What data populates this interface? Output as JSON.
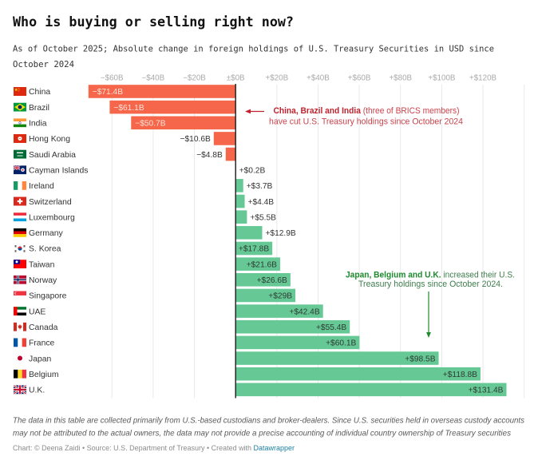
{
  "title": "Who is buying or selling right now?",
  "subtitle_lines": [
    "As of October 2025; Absolute change in foreign holdings of U.S. Treasury Securities in USD since",
    "October 2024"
  ],
  "chart_data": {
    "type": "bar",
    "orientation": "horizontal",
    "title": "Who is buying or selling right now?",
    "xlabel": "Absolute change in foreign holdings of U.S. Treasury Securities (USD billions)",
    "ylabel": "",
    "unit": "USD billions",
    "categories": [
      "China",
      "Brazil",
      "India",
      "Hong Kong",
      "Saudi Arabia",
      "Cayman Islands",
      "Ireland",
      "Switzerland",
      "Luxembourg",
      "Germany",
      "S. Korea",
      "Taiwan",
      "Norway",
      "Singapore",
      "UAE",
      "Canada",
      "France",
      "Japan",
      "Belgium",
      "U.K."
    ],
    "values": [
      -71.4,
      -61.1,
      -50.7,
      -10.6,
      -4.8,
      0.2,
      3.7,
      4.4,
      5.5,
      12.9,
      17.8,
      21.6,
      26.6,
      29,
      42.4,
      55.4,
      60.1,
      98.5,
      118.8,
      131.4
    ],
    "value_labels": [
      "−$71.4B",
      "−$61.1B",
      "−$50.7B",
      "−$10.6B",
      "−$4.8B",
      "+$0.2B",
      "+$3.7B",
      "+$4.4B",
      "+$5.5B",
      "+$12.9B",
      "+$17.8B",
      "+$21.6B",
      "+$26.6B",
      "+$29B",
      "+$42.4B",
      "+$55.4B",
      "+$60.1B",
      "+$98.5B",
      "+$118.8B",
      "+$131.4B"
    ],
    "flags": [
      "china-flag-icon",
      "brazil-flag-icon",
      "india-flag-icon",
      "hong-kong-flag-icon",
      "saudi-arabia-flag-icon",
      "cayman-islands-flag-icon",
      "ireland-flag-icon",
      "switzerland-flag-icon",
      "luxembourg-flag-icon",
      "germany-flag-icon",
      "south-korea-flag-icon",
      "taiwan-flag-icon",
      "norway-flag-icon",
      "singapore-flag-icon",
      "uae-flag-icon",
      "canada-flag-icon",
      "france-flag-icon",
      "japan-flag-icon",
      "belgium-flag-icon",
      "uk-flag-icon"
    ],
    "xlim": [
      -75,
      140
    ],
    "x_ticks": [
      {
        "value": -60,
        "label": "−$60B"
      },
      {
        "value": -40,
        "label": "−$40B"
      },
      {
        "value": -20,
        "label": "−$20B"
      },
      {
        "value": 0,
        "label": "±$0B"
      },
      {
        "value": 20,
        "label": "+$20B"
      },
      {
        "value": 40,
        "label": "+$40B"
      },
      {
        "value": 60,
        "label": "+$60B"
      },
      {
        "value": 80,
        "label": "+$80B"
      },
      {
        "value": 100,
        "label": "+$100B"
      },
      {
        "value": 120,
        "label": "+$120B"
      }
    ],
    "gridlines": [
      -60,
      -40,
      -20,
      20,
      40,
      60,
      80,
      100,
      120,
      140
    ],
    "grid": true,
    "tick_position": "top",
    "legend": "none",
    "colors": {
      "negative": "#f5664a",
      "positive": "#66c995",
      "zero_line": "#1a1a1a",
      "gridline": "#e9e9e9",
      "label_text": "#333333",
      "label_on_negative": "#fde3da",
      "label_on_positive": "#2d3a32"
    },
    "annotations": [
      {
        "bold": "China, Brazil and India",
        "text": " (three of BRICS members)",
        "line2": "have cut U.S. Treasury holdings since October 2024",
        "color_bold": "#c0232f",
        "color": "#c8434c",
        "arrow": "left",
        "points_to": [
          "China",
          "Brazil",
          "India"
        ]
      },
      {
        "bold": "Japan, Belgium and U.K.",
        "text": " increased their U.S.",
        "line2": "Treasury holdings since October 2024.",
        "color_bold": "#1e8a2e",
        "color": "#3f7d4c",
        "arrow": "down",
        "points_to": [
          "Japan",
          "Belgium",
          "U.K."
        ]
      }
    ]
  },
  "footer": {
    "note_lines": [
      "The data in this table are collected primarily from U.S.-based custodians and broker-dealers. Since U.S. securities held in overseas custody accounts",
      "may not be attributed to the actual owners, the data may not provide a precise accounting of individual country ownership of Treasury securities"
    ],
    "source_prefix": "Chart: © Deena Zaidi • Source: U.S. Department of Treasury • Created with ",
    "source_link": "Datawrapper",
    "link_color": "#1d81a2"
  }
}
